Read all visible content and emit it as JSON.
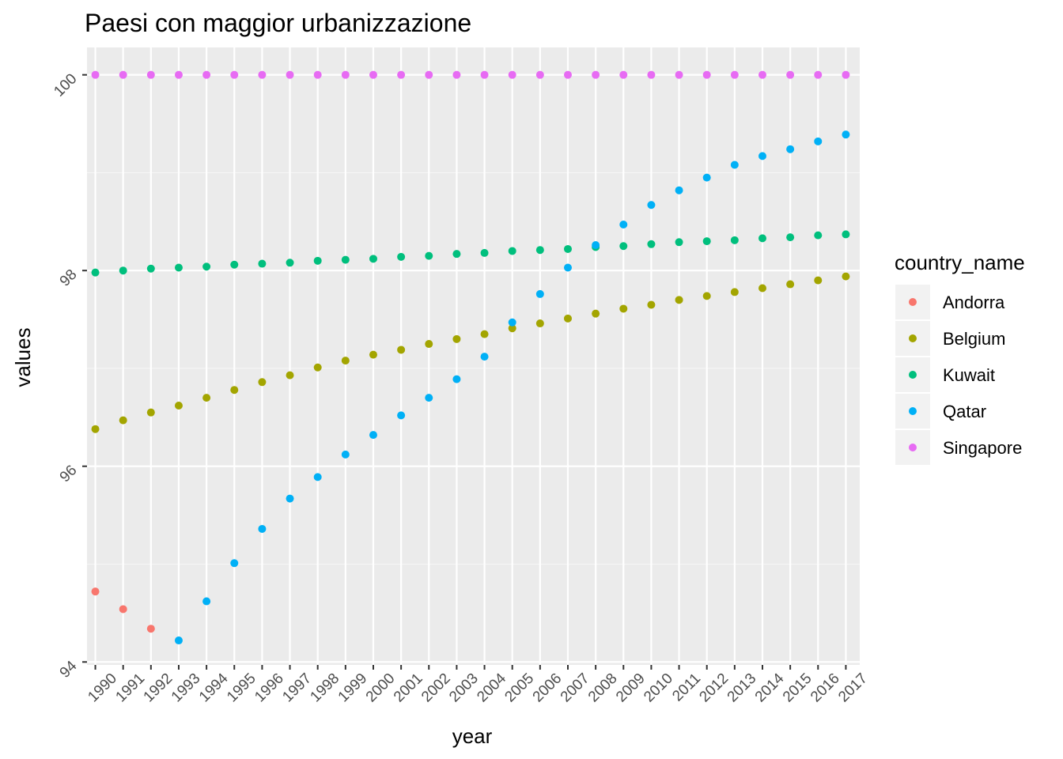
{
  "chart_data": {
    "type": "scatter",
    "title": "Paesi con maggior urbanizzazione",
    "xlabel": "year",
    "ylabel": "values",
    "xlim": [
      1989.7,
      2017.5
    ],
    "ylim": [
      93.97,
      100.28
    ],
    "grid": true,
    "x_ticks": [
      "1990",
      "1991",
      "1992",
      "1993",
      "1994",
      "1995",
      "1996",
      "1997",
      "1998",
      "1999",
      "2000",
      "2001",
      "2002",
      "2003",
      "2004",
      "2005",
      "2006",
      "2007",
      "2008",
      "2009",
      "2010",
      "2011",
      "2012",
      "2013",
      "2014",
      "2015",
      "2016",
      "2017"
    ],
    "y_ticks": [
      94,
      96,
      98,
      100
    ],
    "legend": {
      "title": "country_name",
      "position": "right"
    },
    "series": [
      {
        "name": "Andorra",
        "color": "#F8766D",
        "x": [
          1990,
          1991,
          1992
        ],
        "y": [
          94.72,
          94.54,
          94.34
        ]
      },
      {
        "name": "Belgium",
        "color": "#A3A500",
        "x": [
          1990,
          1991,
          1992,
          1993,
          1994,
          1995,
          1996,
          1997,
          1998,
          1999,
          2000,
          2001,
          2002,
          2003,
          2004,
          2005,
          2006,
          2007,
          2008,
          2009,
          2010,
          2011,
          2012,
          2013,
          2014,
          2015,
          2016,
          2017
        ],
        "y": [
          96.38,
          96.47,
          96.55,
          96.62,
          96.7,
          96.78,
          96.86,
          96.93,
          97.01,
          97.08,
          97.14,
          97.19,
          97.25,
          97.3,
          97.35,
          97.41,
          97.46,
          97.51,
          97.56,
          97.61,
          97.65,
          97.7,
          97.74,
          97.78,
          97.82,
          97.86,
          97.9,
          97.94
        ]
      },
      {
        "name": "Kuwait",
        "color": "#00BF7D",
        "x": [
          1990,
          1991,
          1992,
          1993,
          1994,
          1995,
          1996,
          1997,
          1998,
          1999,
          2000,
          2001,
          2002,
          2003,
          2004,
          2005,
          2006,
          2007,
          2008,
          2009,
          2010,
          2011,
          2012,
          2013,
          2014,
          2015,
          2016,
          2017
        ],
        "y": [
          97.98,
          98.0,
          98.02,
          98.03,
          98.04,
          98.06,
          98.07,
          98.08,
          98.1,
          98.11,
          98.12,
          98.14,
          98.15,
          98.17,
          98.18,
          98.2,
          98.21,
          98.22,
          98.24,
          98.25,
          98.27,
          98.29,
          98.3,
          98.31,
          98.33,
          98.34,
          98.36,
          98.37
        ]
      },
      {
        "name": "Qatar",
        "color": "#00B0F6",
        "x": [
          1993,
          1994,
          1995,
          1996,
          1997,
          1998,
          1999,
          2000,
          2001,
          2002,
          2003,
          2004,
          2005,
          2006,
          2007,
          2008,
          2009,
          2010,
          2011,
          2012,
          2013,
          2014,
          2015,
          2016,
          2017
        ],
        "y": [
          94.22,
          94.62,
          95.01,
          95.36,
          95.67,
          95.89,
          96.12,
          96.32,
          96.52,
          96.7,
          96.89,
          97.12,
          97.47,
          97.76,
          98.03,
          98.26,
          98.47,
          98.67,
          98.82,
          98.95,
          99.08,
          99.17,
          99.24,
          99.32,
          99.39
        ]
      },
      {
        "name": "Singapore",
        "color": "#E76BF3",
        "x": [
          1990,
          1991,
          1992,
          1993,
          1994,
          1995,
          1996,
          1997,
          1998,
          1999,
          2000,
          2001,
          2002,
          2003,
          2004,
          2005,
          2006,
          2007,
          2008,
          2009,
          2010,
          2011,
          2012,
          2013,
          2014,
          2015,
          2016,
          2017
        ],
        "y": [
          100,
          100,
          100,
          100,
          100,
          100,
          100,
          100,
          100,
          100,
          100,
          100,
          100,
          100,
          100,
          100,
          100,
          100,
          100,
          100,
          100,
          100,
          100,
          100,
          100,
          100,
          100,
          100
        ]
      }
    ]
  }
}
